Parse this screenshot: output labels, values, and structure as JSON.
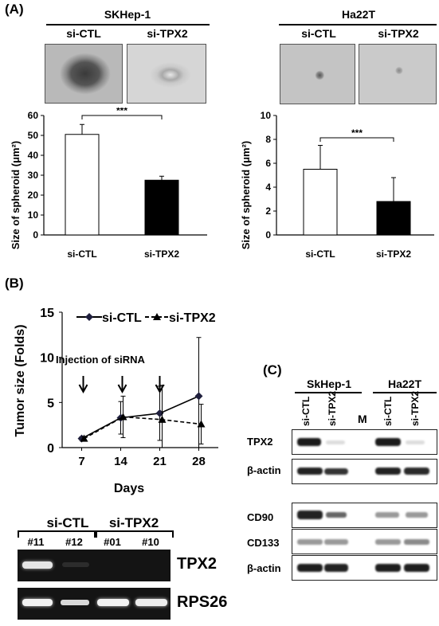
{
  "panelA": {
    "label": "(A)",
    "left": {
      "cell_line": "SKHep-1",
      "groups": [
        "si-CTL",
        "si-TPX2"
      ],
      "significance": "***",
      "chart_data": {
        "type": "bar",
        "categories": [
          "si-CTL",
          "si-TPX2"
        ],
        "values": [
          50.5,
          27.5
        ],
        "errors": [
          5,
          2
        ],
        "ylabel": "Size of spheroid  (μm²)",
        "ylim": [
          0,
          60
        ],
        "yticks": [
          0,
          10,
          20,
          30,
          40,
          50,
          60
        ],
        "bar_colors": [
          "#ffffff",
          "#000000"
        ]
      }
    },
    "right": {
      "cell_line": "Ha22T",
      "groups": [
        "si-CTL",
        "si-TPX2"
      ],
      "significance": "***",
      "chart_data": {
        "type": "bar",
        "categories": [
          "si-CTL",
          "si-TPX2"
        ],
        "values": [
          5.5,
          2.8
        ],
        "errors": [
          2,
          2
        ],
        "ylabel": "Size of spheroid  (μm²)",
        "ylim": [
          0,
          10
        ],
        "yticks": [
          0,
          2,
          4,
          6,
          8,
          10
        ],
        "bar_colors": [
          "#ffffff",
          "#000000"
        ]
      }
    }
  },
  "panelB": {
    "label": "(B)",
    "annotation": "Injection of siRNA",
    "chart_data": {
      "type": "line",
      "x": [
        7,
        14,
        21,
        28
      ],
      "xlabel": "Days",
      "ylabel": "Tumor size (Folds)",
      "ylim": [
        0,
        15
      ],
      "yticks": [
        0,
        5,
        10,
        15
      ],
      "series": [
        {
          "name": "si-CTL",
          "values": [
            1,
            3.3,
            3.8,
            5.7
          ],
          "errors": [
            0.2,
            1.8,
            3,
            6.5
          ],
          "marker": "diamond",
          "dash": false
        },
        {
          "name": "si-TPX2",
          "values": [
            1,
            3.4,
            3.1,
            2.6
          ],
          "errors": [
            0.2,
            2.3,
            3.8,
            2.2
          ],
          "marker": "triangle",
          "dash": true
        }
      ],
      "arrows_at": [
        7,
        14,
        21
      ]
    },
    "gel": {
      "groups": [
        "si-CTL",
        "si-TPX2"
      ],
      "samples": [
        "#11",
        "#12",
        "#01",
        "#10"
      ],
      "rows": [
        "TPX2",
        "RPS26"
      ]
    }
  },
  "panelC": {
    "label": "(C)",
    "cell_lines": [
      "SkHep-1",
      "Ha22T"
    ],
    "lanes": [
      "si-CTL",
      "si-TPX2",
      "M",
      "si-CTL",
      "si-TPX2"
    ],
    "rows": [
      "TPX2",
      "β-actin",
      "CD90",
      "CD133",
      "β-actin"
    ]
  }
}
